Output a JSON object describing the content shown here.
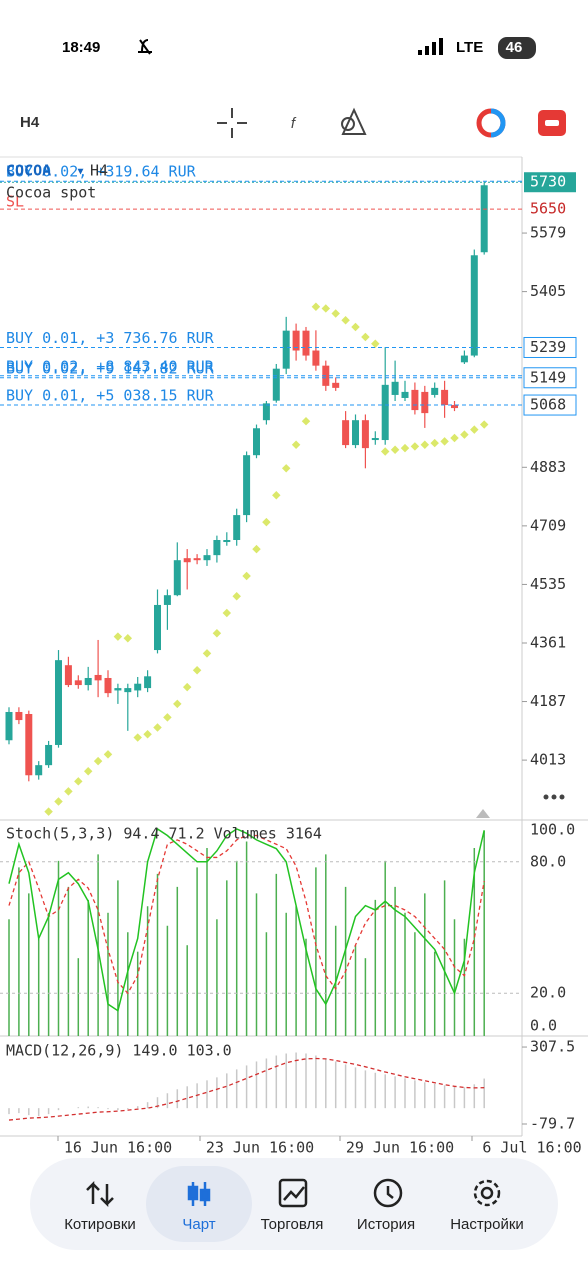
{
  "status_bar": {
    "time": "18:49",
    "network": "LTE",
    "battery": "46"
  },
  "toolbar": {
    "timeframe": "H4"
  },
  "chart": {
    "symbol": "COCOA",
    "dropdown": "▾",
    "timeframe": "H4",
    "description": "Cocoa spot",
    "ylim": [
      3841,
      5802
    ],
    "yticks": [
      5579,
      5405,
      4883,
      4709,
      4535,
      4361,
      4187,
      4013
    ],
    "last_price": 5730,
    "sl": {
      "label": "SL",
      "price": 5650
    },
    "positions": [
      {
        "text": "BUY 0.02, +319.64 RUR",
        "price": 5733,
        "label_shown": false
      },
      {
        "text": "BUY 0.01, +3 736.76 RUR",
        "price": 5239,
        "label_shown": true
      },
      {
        "text": "BUY 0.02, +8 843.40 RUR",
        "price": 5155,
        "label_shown": false
      },
      {
        "text": "BUY 0.02, +9 147.82 RUR",
        "price": 5149,
        "label_shown": true
      },
      {
        "text": "BUY 0.01, +5 038.15 RUR",
        "price": 5068,
        "label_shown": true
      }
    ],
    "candles": {
      "open": [
        4072,
        4156,
        4150,
        3968,
        3998,
        4058,
        4295,
        4250,
        4236,
        4266,
        4257,
        4220,
        4215,
        4220,
        4227,
        4340,
        4474,
        4503,
        4613,
        4613,
        4607,
        4622,
        4661,
        4667,
        4741,
        4919,
        5023,
        5081,
        5176,
        5289,
        5289,
        5230,
        5185,
        5134,
        5023,
        4949,
        5023,
        4964,
        4964,
        5098,
        5089,
        5113,
        5107,
        5098,
        5113,
        5068,
        5195,
        5215,
        5522
      ],
      "high": [
        4170,
        4170,
        4160,
        4010,
        4070,
        4340,
        4320,
        4265,
        4290,
        4370,
        4280,
        4240,
        4240,
        4260,
        4280,
        4520,
        4520,
        4660,
        4640,
        4625,
        4640,
        4680,
        4690,
        4760,
        4930,
        5010,
        5080,
        5190,
        5330,
        5310,
        5300,
        5290,
        5200,
        5150,
        5050,
        5040,
        5040,
        4990,
        5240,
        5200,
        5140,
        5135,
        5125,
        5135,
        5140,
        5080,
        5230,
        5530,
        5730
      ],
      "low": [
        4060,
        4120,
        3950,
        3955,
        3990,
        4050,
        4230,
        4225,
        4220,
        4200,
        4200,
        4180,
        4100,
        4200,
        4215,
        4330,
        4400,
        4500,
        4520,
        4595,
        4590,
        4600,
        4650,
        4650,
        4720,
        4910,
        5010,
        5075,
        5160,
        5200,
        5200,
        5170,
        5110,
        5110,
        4940,
        4940,
        4880,
        4950,
        4950,
        5080,
        5080,
        5040,
        5000,
        5090,
        5030,
        5050,
        5190,
        5210,
        5515
      ],
      "close": [
        4156,
        4132,
        3968,
        3998,
        4058,
        4310,
        4236,
        4236,
        4257,
        4250,
        4212,
        4227,
        4227,
        4240,
        4262,
        4474,
        4503,
        4607,
        4601,
        4607,
        4622,
        4667,
        4667,
        4741,
        4919,
        4999,
        5073,
        5176,
        5289,
        5230,
        5215,
        5185,
        5125,
        5119,
        4949,
        5023,
        4940,
        4970,
        5128,
        5137,
        5107,
        5053,
        5044,
        5119,
        5068,
        5059,
        5215,
        5513,
        5721
      ]
    },
    "sar": [
      null,
      null,
      null,
      null,
      3860,
      3890,
      3920,
      3950,
      3980,
      4010,
      4030,
      4380,
      4375,
      4080,
      4090,
      4110,
      4140,
      4180,
      4230,
      4280,
      4330,
      4390,
      4450,
      4500,
      4560,
      4640,
      4720,
      4800,
      4880,
      4950,
      5020,
      5360,
      5355,
      5340,
      5320,
      5300,
      5270,
      5250,
      4930,
      4935,
      4940,
      4945,
      4950,
      4955,
      4960,
      4970,
      4980,
      4995,
      5010
    ],
    "stoch": {
      "label": "Stoch(5,3,3)",
      "ylim": [
        0,
        100
      ],
      "yticks": [
        {
          "value": 100,
          "label": "100.0"
        },
        {
          "value": 80,
          "label": "80.0"
        },
        {
          "value": 20,
          "label": "20.0"
        },
        {
          "value": 0,
          "label": "0.0"
        }
      ],
      "k": [
        70,
        88,
        75,
        45,
        55,
        72,
        75,
        70,
        62,
        40,
        15,
        12,
        30,
        45,
        80,
        95,
        92,
        88,
        84,
        80,
        80,
        85,
        92,
        95,
        93,
        90,
        88,
        86,
        80,
        60,
        40,
        22,
        15,
        25,
        40,
        55,
        60,
        58,
        62,
        58,
        55,
        50,
        45,
        40,
        30,
        20,
        35,
        75,
        94.4
      ],
      "d": [
        60,
        75,
        80,
        68,
        55,
        58,
        68,
        72,
        68,
        58,
        40,
        25,
        20,
        28,
        50,
        72,
        88,
        90,
        88,
        85,
        82,
        82,
        85,
        90,
        92,
        92,
        90,
        88,
        86,
        78,
        62,
        42,
        28,
        22,
        30,
        42,
        52,
        58,
        60,
        60,
        58,
        55,
        50,
        45,
        40,
        32,
        28,
        45,
        71.2
      ]
    },
    "volumes": {
      "label": "Volumes",
      "vlim": [
        0,
        3300
      ],
      "values": [
        1800,
        2600,
        2200,
        1500,
        1900,
        2700,
        2300,
        1200,
        2100,
        2800,
        1900,
        2400,
        1600,
        1300,
        2000,
        2500,
        1700,
        2300,
        1400,
        2600,
        2900,
        1800,
        2400,
        2700,
        3000,
        2200,
        1600,
        2500,
        1900,
        2000,
        1500,
        2600,
        2800,
        1700,
        2300,
        1400,
        1200,
        2100,
        2700,
        2300,
        1900,
        1600,
        2200,
        1300,
        2400,
        1800,
        1500,
        2900,
        3164
      ]
    },
    "macd": {
      "label": "MACD(12,26,9)",
      "current_labels": [
        "149.0",
        "103.0"
      ],
      "ylim": [
        -125,
        353
      ],
      "yticks": [
        307.5,
        -79.7
      ],
      "hist": [
        -30,
        -25,
        -35,
        -40,
        -30,
        -10,
        0,
        5,
        8,
        5,
        -5,
        -10,
        -5,
        10,
        30,
        55,
        75,
        95,
        110,
        125,
        140,
        155,
        175,
        195,
        215,
        235,
        250,
        265,
        275,
        280,
        275,
        265,
        250,
        235,
        220,
        205,
        190,
        178,
        170,
        160,
        150,
        140,
        130,
        122,
        115,
        108,
        105,
        120,
        149
      ],
      "signal": [
        -60,
        -55,
        -50,
        -48,
        -45,
        -40,
        -35,
        -30,
        -25,
        -20,
        -18,
        -15,
        -10,
        -5,
        0,
        10,
        22,
        35,
        50,
        65,
        80,
        95,
        110,
        130,
        150,
        170,
        190,
        210,
        228,
        240,
        248,
        250,
        248,
        240,
        230,
        220,
        208,
        195,
        182,
        170,
        158,
        148,
        138,
        128,
        118,
        110,
        104,
        102,
        103
      ]
    },
    "xlabels": [
      "16 Jun 16:00",
      "23 Jun 16:00",
      "29 Jun 16:00",
      "6 Jul 16:00"
    ]
  },
  "nav": {
    "items": [
      "Котировки",
      "Чарт",
      "Торговля",
      "История",
      "Настройки"
    ]
  }
}
